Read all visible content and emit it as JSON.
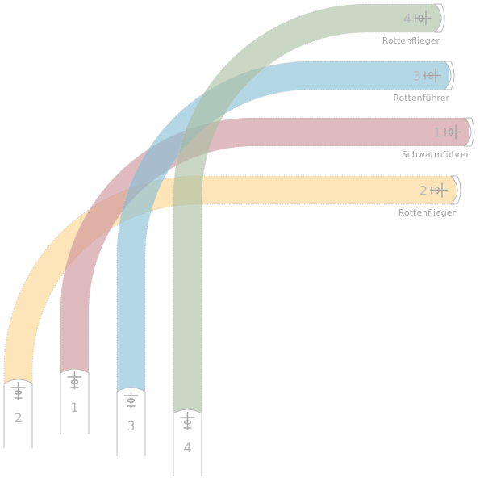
{
  "formations": [
    {
      "start_number": "2",
      "end_number": "2",
      "role": "Rottenflieger"
    },
    {
      "start_number": "1",
      "end_number": "1",
      "role": "Schwarmführer"
    },
    {
      "start_number": "3",
      "end_number": "3",
      "role": "Rottenführer"
    },
    {
      "start_number": "4",
      "end_number": "4",
      "role": "Rottenflieger"
    }
  ]
}
